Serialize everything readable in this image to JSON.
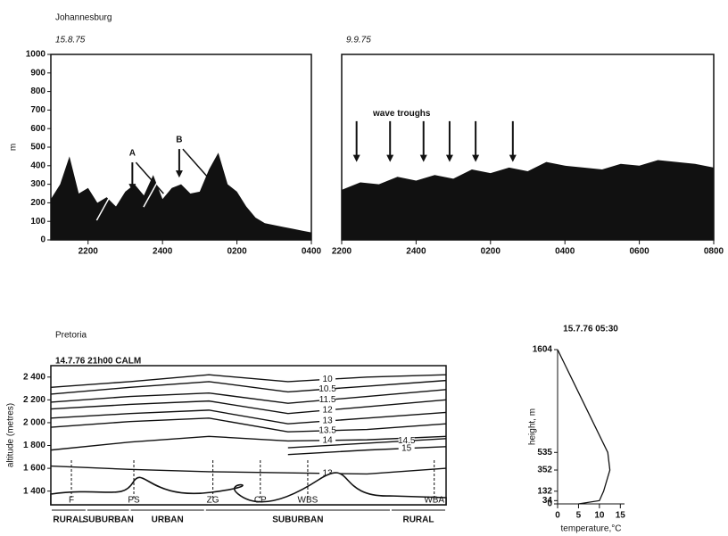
{
  "chart_data": [
    {
      "type": "area",
      "title": "Johannesburg",
      "subtitle": "15.8.75",
      "ylabel": "m",
      "color": "#111111",
      "x": [
        21,
        21.25,
        21.5,
        21.75,
        22,
        22.25,
        22.5,
        22.75,
        23,
        23.25,
        23.5,
        23.75,
        24,
        24.25,
        24.5,
        24.75,
        25,
        25.25,
        25.5,
        25.75,
        26,
        26.25,
        26.5,
        26.75,
        27,
        27.25,
        27.5,
        27.75,
        28
      ],
      "values": [
        220,
        300,
        450,
        250,
        280,
        200,
        230,
        180,
        260,
        300,
        240,
        350,
        220,
        280,
        300,
        250,
        260,
        380,
        470,
        300,
        260,
        180,
        120,
        90,
        80,
        70,
        60,
        50,
        40
      ],
      "xlim": [
        21,
        28
      ],
      "xticks": [
        {
          "value": 22,
          "label": "2200"
        },
        {
          "value": 24,
          "label": "2400"
        },
        {
          "value": 26,
          "label": "0200"
        },
        {
          "value": 28,
          "label": "0400"
        }
      ],
      "ylim": [
        0,
        1000
      ],
      "yticks": [
        0,
        100,
        200,
        300,
        400,
        500,
        600,
        700,
        800,
        900,
        1000
      ],
      "annotations": [
        {
          "text": "A",
          "x": 23.19,
          "y": 466
        },
        {
          "text": "B",
          "x": 24.45,
          "y": 538
        }
      ]
    },
    {
      "type": "area",
      "subtitle": "9.9.75",
      "color": "#111111",
      "x": [
        22,
        22.5,
        23,
        23.5,
        24,
        24.5,
        25,
        25.5,
        26,
        26.5,
        27,
        27.5,
        28,
        28.5,
        29,
        29.5,
        30,
        30.5,
        31,
        31.5,
        32
      ],
      "values": [
        270,
        310,
        300,
        340,
        320,
        350,
        330,
        380,
        360,
        390,
        370,
        420,
        400,
        390,
        380,
        410,
        400,
        430,
        420,
        410,
        390
      ],
      "xlim": [
        22,
        32
      ],
      "xticks": [
        {
          "value": 22,
          "label": "2200"
        },
        {
          "value": 24,
          "label": "2400"
        },
        {
          "value": 26,
          "label": "0200"
        },
        {
          "value": 28,
          "label": "0400"
        },
        {
          "value": 30,
          "label": "0600"
        },
        {
          "value": 32,
          "label": "0800"
        }
      ],
      "ylim": [
        0,
        1000
      ],
      "annotations": [
        {
          "text": "wave troughs",
          "x": 22.84,
          "y": 681
        }
      ],
      "arrows": [
        22.4,
        23.3,
        24.2,
        24.9,
        25.6,
        26.6
      ]
    },
    {
      "type": "line",
      "title": "Pretoria",
      "subtitle": "14.7.76 21h00 CALM",
      "ylabel": "altitude (metres)",
      "color": "#111111",
      "x": [
        0,
        20,
        40,
        60,
        80,
        100
      ],
      "xlim": [
        0,
        100
      ],
      "ylim": [
        1280,
        2500
      ],
      "yticks": [
        {
          "value": 1400,
          "label": "1 400"
        },
        {
          "value": 1600,
          "label": "1 600"
        },
        {
          "value": 1800,
          "label": "1 800"
        },
        {
          "value": 2000,
          "label": "2 000"
        },
        {
          "value": 2200,
          "label": "2 200"
        },
        {
          "value": 2400,
          "label": "2 400"
        }
      ],
      "series": [
        {
          "name": "10",
          "values": [
            2310,
            2360,
            2420,
            2360,
            2400,
            2420
          ]
        },
        {
          "name": "10.5",
          "values": [
            2250,
            2310,
            2360,
            2270,
            2320,
            2370
          ]
        },
        {
          "name": "11.5",
          "values": [
            2180,
            2230,
            2260,
            2170,
            2230,
            2290
          ]
        },
        {
          "name": "12",
          "values": [
            2120,
            2160,
            2190,
            2080,
            2140,
            2200
          ]
        },
        {
          "name": "13",
          "values": [
            2040,
            2080,
            2110,
            1990,
            2040,
            2090
          ]
        },
        {
          "name": "13.5",
          "values": [
            1960,
            2010,
            2040,
            1920,
            1940,
            1990
          ]
        },
        {
          "name": "14",
          "values": [
            1760,
            1830,
            1880,
            1840,
            1850,
            1880
          ]
        },
        {
          "name": "14.5",
          "values": [
            null,
            null,
            null,
            1780,
            1820,
            1860
          ]
        },
        {
          "name": "15",
          "values": [
            null,
            null,
            null,
            1720,
            1760,
            1790
          ]
        },
        {
          "name": "13",
          "values": [
            1620,
            1590,
            1570,
            1560,
            1550,
            1600
          ]
        }
      ],
      "sites": [
        {
          "label": "F",
          "x": 5.2
        },
        {
          "label": "PS",
          "x": 21
        },
        {
          "label": "ZG",
          "x": 41
        },
        {
          "label": "CP",
          "x": 53
        },
        {
          "label": "WBS",
          "x": 65
        },
        {
          "label": "WBA",
          "x": 97
        }
      ],
      "zones": [
        {
          "label": "RURAL",
          "x": [
            0,
            9
          ]
        },
        {
          "label": "SUBURBAN",
          "x": [
            9,
            20
          ]
        },
        {
          "label": "URBAN",
          "x": [
            20,
            39
          ]
        },
        {
          "label": "SUBURBAN",
          "x": [
            39,
            86
          ]
        },
        {
          "label": "RURAL",
          "x": [
            86,
            100
          ]
        }
      ]
    },
    {
      "type": "profile",
      "title": "15.7.76 05:30",
      "xlabel": "temperature,°C",
      "ylabel": "height, m",
      "color": "#111111",
      "x": [
        5,
        10,
        11,
        12.5,
        12,
        0
      ],
      "values": [
        0,
        34,
        132,
        352,
        535,
        1604
      ],
      "xlim": [
        0,
        16
      ],
      "xticks": [
        0,
        5,
        10,
        15
      ],
      "ylim": [
        0,
        1604
      ],
      "yticks": [
        0,
        34,
        132,
        352,
        535,
        1604
      ]
    }
  ]
}
